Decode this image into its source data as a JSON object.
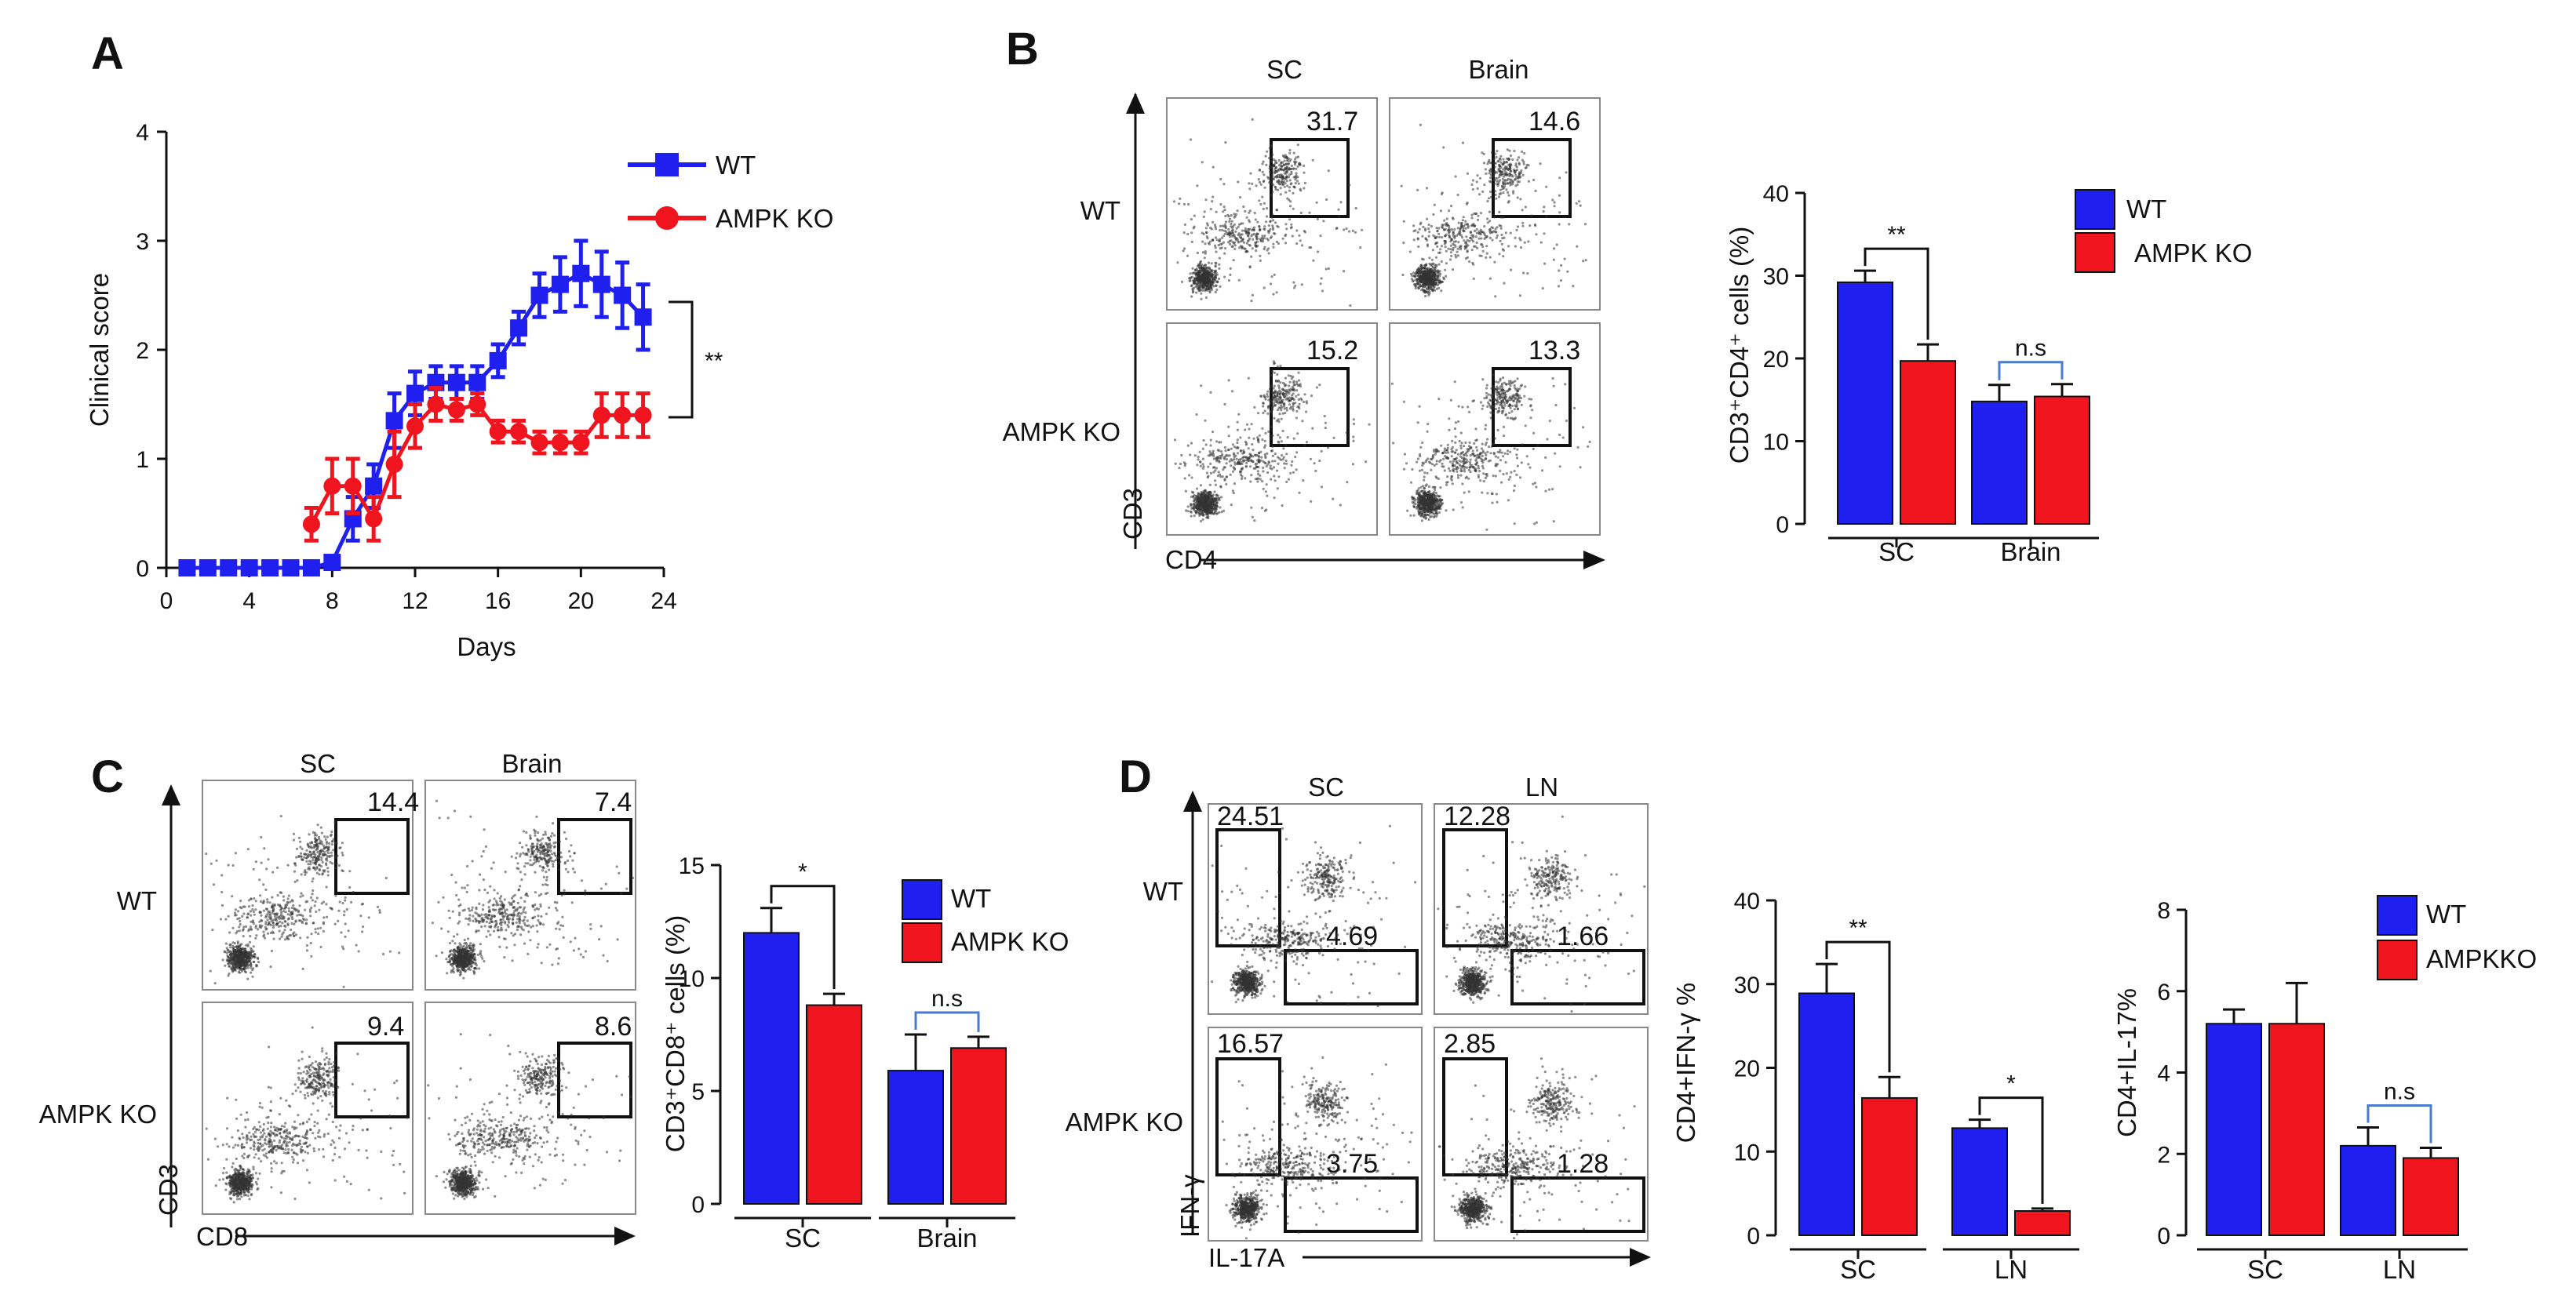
{
  "panels": {
    "A": "A",
    "B": "B",
    "C": "C",
    "D": "D"
  },
  "colors": {
    "wt": "#1f1ff0",
    "ko": "#f0141e",
    "ns": "#4a7bd0"
  },
  "chart_data": [
    {
      "id": "A",
      "type": "line",
      "xlabel": "Days",
      "ylabel": "Clinical score",
      "xlim": [
        0,
        24
      ],
      "ylim": [
        0,
        4
      ],
      "xticks": [
        "0",
        "4",
        "8",
        "12",
        "16",
        "20",
        "24"
      ],
      "yticks": [
        "0",
        "1",
        "2",
        "3",
        "4"
      ],
      "significance": "**",
      "series": [
        {
          "name": "WT",
          "color": "#1f1ff0",
          "marker": "square",
          "x": [
            1,
            2,
            3,
            4,
            5,
            6,
            7,
            8,
            9,
            10,
            11,
            12,
            13,
            14,
            15,
            16,
            17,
            18,
            19,
            20,
            21,
            22,
            23
          ],
          "y": [
            0,
            0,
            0,
            0,
            0,
            0,
            0,
            0.05,
            0.45,
            0.75,
            1.35,
            1.6,
            1.7,
            1.7,
            1.7,
            1.9,
            2.2,
            2.5,
            2.6,
            2.7,
            2.6,
            2.5,
            2.3
          ],
          "err": [
            0,
            0,
            0,
            0,
            0,
            0,
            0,
            0.05,
            0.2,
            0.2,
            0.25,
            0.2,
            0.15,
            0.15,
            0.15,
            0.15,
            0.15,
            0.2,
            0.25,
            0.3,
            0.3,
            0.3,
            0.3
          ]
        },
        {
          "name": "AMPK KO",
          "color": "#f0141e",
          "marker": "circle",
          "x": [
            7,
            8,
            9,
            10,
            11,
            12,
            13,
            14,
            15,
            16,
            17,
            18,
            19,
            20,
            21,
            22,
            23
          ],
          "y": [
            0.4,
            0.75,
            0.75,
            0.45,
            0.95,
            1.3,
            1.5,
            1.45,
            1.5,
            1.25,
            1.25,
            1.15,
            1.15,
            1.15,
            1.4,
            1.4,
            1.4
          ],
          "err": [
            0.15,
            0.25,
            0.25,
            0.2,
            0.3,
            0.2,
            0.15,
            0.1,
            0.1,
            0.1,
            0.1,
            0.1,
            0.1,
            0.1,
            0.2,
            0.2,
            0.2
          ]
        }
      ]
    },
    {
      "id": "B",
      "type": "bar",
      "ylabel": "CD3⁺CD4⁺ cells (%)",
      "ylim": [
        0,
        40
      ],
      "yticks": [
        "0",
        "10",
        "20",
        "30",
        "40"
      ],
      "categories": [
        "SC",
        "Brain"
      ],
      "series": [
        {
          "name": "WT",
          "values": [
            29.2,
            14.8
          ],
          "err": [
            1.4,
            2
          ]
        },
        {
          "name": "AMPK KO",
          "values": [
            19.7,
            15.4
          ],
          "err": [
            2,
            1.5
          ]
        }
      ],
      "annotations": [
        "**",
        "n.s"
      ]
    },
    {
      "id": "C",
      "type": "bar",
      "ylabel": "CD3⁺CD8⁺ cells (%)",
      "ylim": [
        0,
        15
      ],
      "yticks": [
        "0",
        "5",
        "10",
        "15"
      ],
      "categories": [
        "SC",
        "Brain"
      ],
      "series": [
        {
          "name": "WT",
          "values": [
            12.0,
            5.9
          ],
          "err": [
            1.1,
            1.6
          ]
        },
        {
          "name": "AMPK KO",
          "values": [
            8.8,
            6.9
          ],
          "err": [
            0.5,
            0.5
          ]
        }
      ],
      "annotations": [
        "*",
        "n.s"
      ]
    },
    {
      "id": "D1",
      "type": "bar",
      "ylabel": "CD4+IFN-γ %",
      "ylim": [
        0,
        40
      ],
      "yticks": [
        "0",
        "10",
        "20",
        "30",
        "40"
      ],
      "categories": [
        "SC",
        "LN"
      ],
      "series": [
        {
          "name": "WT",
          "values": [
            28.9,
            12.8
          ],
          "err": [
            3.5,
            1
          ]
        },
        {
          "name": "AMPK KO",
          "values": [
            16.4,
            2.9
          ],
          "err": [
            2.5,
            0.3
          ]
        }
      ],
      "annotations": [
        "**",
        "*"
      ]
    },
    {
      "id": "D2",
      "type": "bar",
      "ylabel": "CD4+IL-17%",
      "ylim": [
        0,
        8
      ],
      "yticks": [
        "0",
        "2",
        "4",
        "6",
        "8"
      ],
      "categories": [
        "SC",
        "LN"
      ],
      "series": [
        {
          "name": "WT",
          "values": [
            5.2,
            2.2
          ],
          "err": [
            0.35,
            0.45
          ]
        },
        {
          "name": "AMPKKO",
          "values": [
            5.2,
            1.9
          ],
          "err": [
            1.0,
            0.25
          ]
        }
      ],
      "annotations": [
        "",
        "n.s"
      ]
    }
  ],
  "flow": {
    "B": {
      "cols": [
        "SC",
        "Brain"
      ],
      "rows": [
        "WT",
        "AMPK KO"
      ],
      "values": [
        "31.7",
        "14.6",
        "15.2",
        "13.3"
      ],
      "xaxis": "CD4",
      "yaxis": "CD3"
    },
    "C": {
      "cols": [
        "SC",
        "Brain"
      ],
      "rows": [
        "WT",
        "AMPK KO"
      ],
      "values": [
        "14.4",
        "7.4",
        "9.4",
        "8.6"
      ],
      "xaxis": "CD8",
      "yaxis": "CD3"
    },
    "D": {
      "cols": [
        "SC",
        "LN"
      ],
      "rows": [
        "WT",
        "AMPK KO"
      ],
      "upper": [
        "24.51",
        "12.28",
        "16.57",
        "2.85"
      ],
      "lower": [
        "4.69",
        "1.66",
        "3.75",
        "1.28"
      ],
      "xaxis": "IL-17A",
      "yaxis": "IFN-γ"
    }
  }
}
